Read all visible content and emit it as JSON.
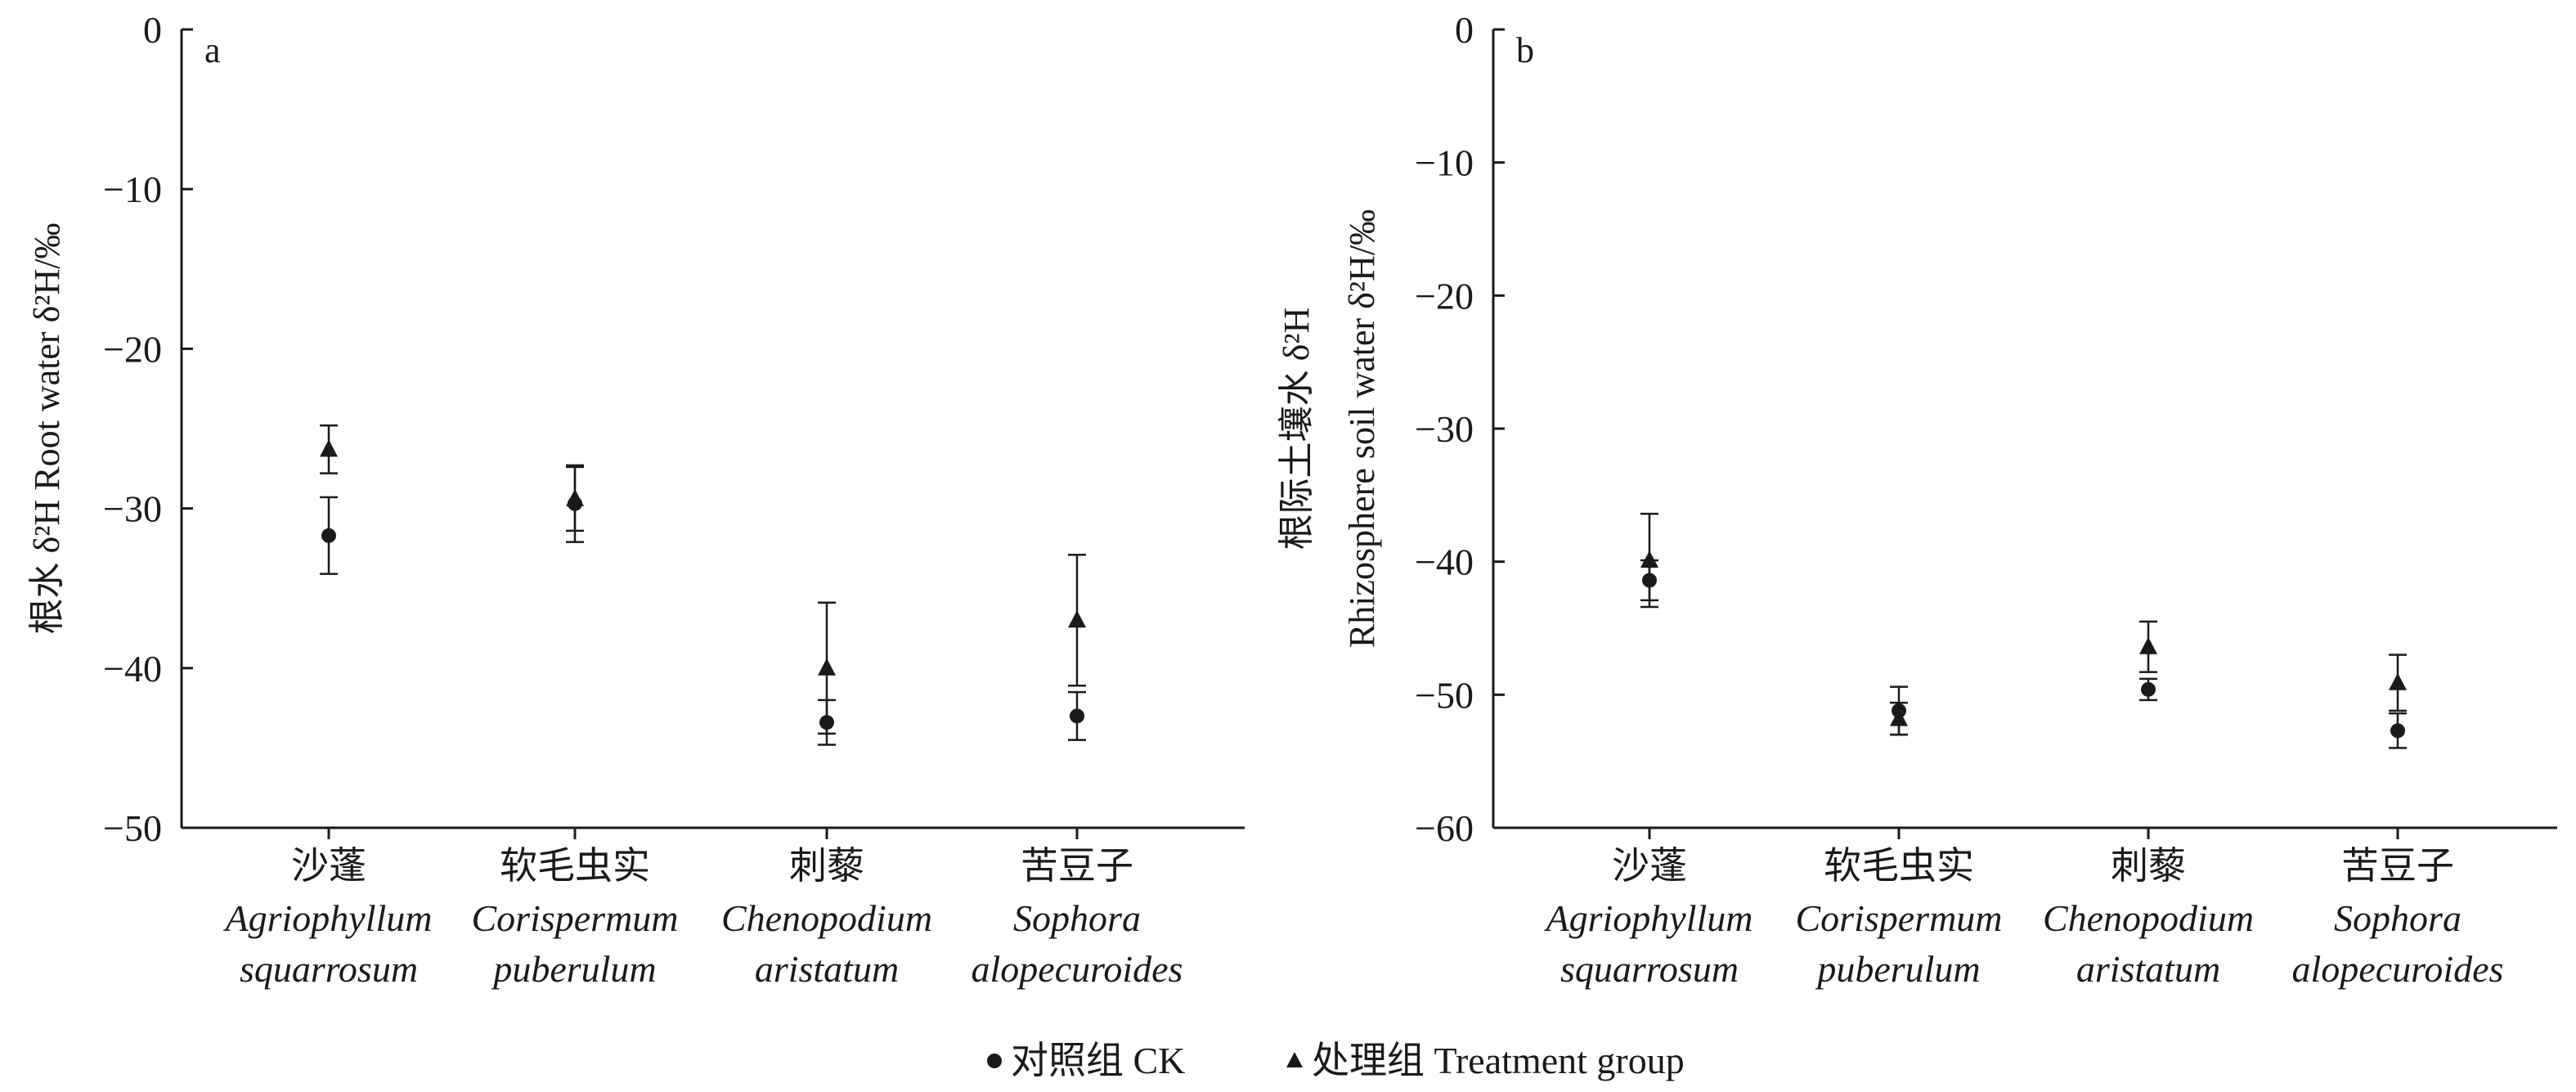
{
  "legend": [
    {
      "name": "对照组 CK",
      "symbol": "circle"
    },
    {
      "name": "处理组 Treatment group",
      "symbol": "triangle"
    }
  ],
  "panels": [
    {
      "letter": "a",
      "ylabel_lines": [
        "根水 δ²H Root water δ²H/‰"
      ]
    },
    {
      "letter": "b",
      "ylabel_lines": [
        "根际土壤水 δ²H",
        "Rhizosphere soil water δ²H/‰"
      ]
    }
  ],
  "chart_data": [
    {
      "type": "scatter",
      "title": "a",
      "ylabel": "根水 δ²H Root water δ²H/‰",
      "xlabel": "",
      "ylim": [
        -50,
        0
      ],
      "yticks": [
        0,
        -10,
        -20,
        -30,
        -40,
        -50
      ],
      "categories": [
        {
          "cn": "沙蓬",
          "latin": [
            "Agriophyllum",
            "squarrosum"
          ]
        },
        {
          "cn": "软毛虫实",
          "latin": [
            "Corispermum",
            "puberulum"
          ]
        },
        {
          "cn": "刺藜",
          "latin": [
            "Chenopodium",
            "aristatum"
          ]
        },
        {
          "cn": "苦豆子",
          "latin": [
            "Sophora",
            "alopecuroides"
          ]
        }
      ],
      "series": [
        {
          "name": "对照组 CK",
          "marker": "circle",
          "values": [
            -31.7,
            -29.7,
            -43.4,
            -43.0
          ],
          "errors": [
            2.4,
            2.4,
            1.4,
            1.5
          ]
        },
        {
          "name": "处理组 Treatment group",
          "marker": "triangle",
          "values": [
            -26.3,
            -29.4,
            -40.0,
            -37.0
          ],
          "errors": [
            1.5,
            2.0,
            4.1,
            4.1
          ]
        }
      ],
      "grid": false,
      "legend_position": "bottom-center"
    },
    {
      "type": "scatter",
      "title": "b",
      "ylabel": "根际土壤水 δ²H Rhizosphere soil water δ²H/‰",
      "xlabel": "",
      "ylim": [
        -60,
        0
      ],
      "yticks": [
        0,
        -10,
        -20,
        -30,
        -40,
        -50,
        -60
      ],
      "categories": [
        {
          "cn": "沙蓬",
          "latin": [
            "Agriophyllum",
            "squarrosum"
          ]
        },
        {
          "cn": "软毛虫实",
          "latin": [
            "Corispermum",
            "puberulum"
          ]
        },
        {
          "cn": "刺藜",
          "latin": [
            "Chenopodium",
            "aristatum"
          ]
        },
        {
          "cn": "苦豆子",
          "latin": [
            "Sophora",
            "alopecuroides"
          ]
        }
      ],
      "series": [
        {
          "name": "对照组 CK",
          "marker": "circle",
          "values": [
            -41.4,
            -51.2,
            -49.6,
            -52.7
          ],
          "errors": [
            1.5,
            1.8,
            0.8,
            1.3
          ]
        },
        {
          "name": "处理组 Treatment group",
          "marker": "triangle",
          "values": [
            -39.9,
            -51.8,
            -46.4,
            -49.1
          ],
          "errors": [
            3.5,
            1.2,
            1.9,
            2.1
          ]
        }
      ],
      "grid": false,
      "legend_position": "bottom-center"
    }
  ]
}
